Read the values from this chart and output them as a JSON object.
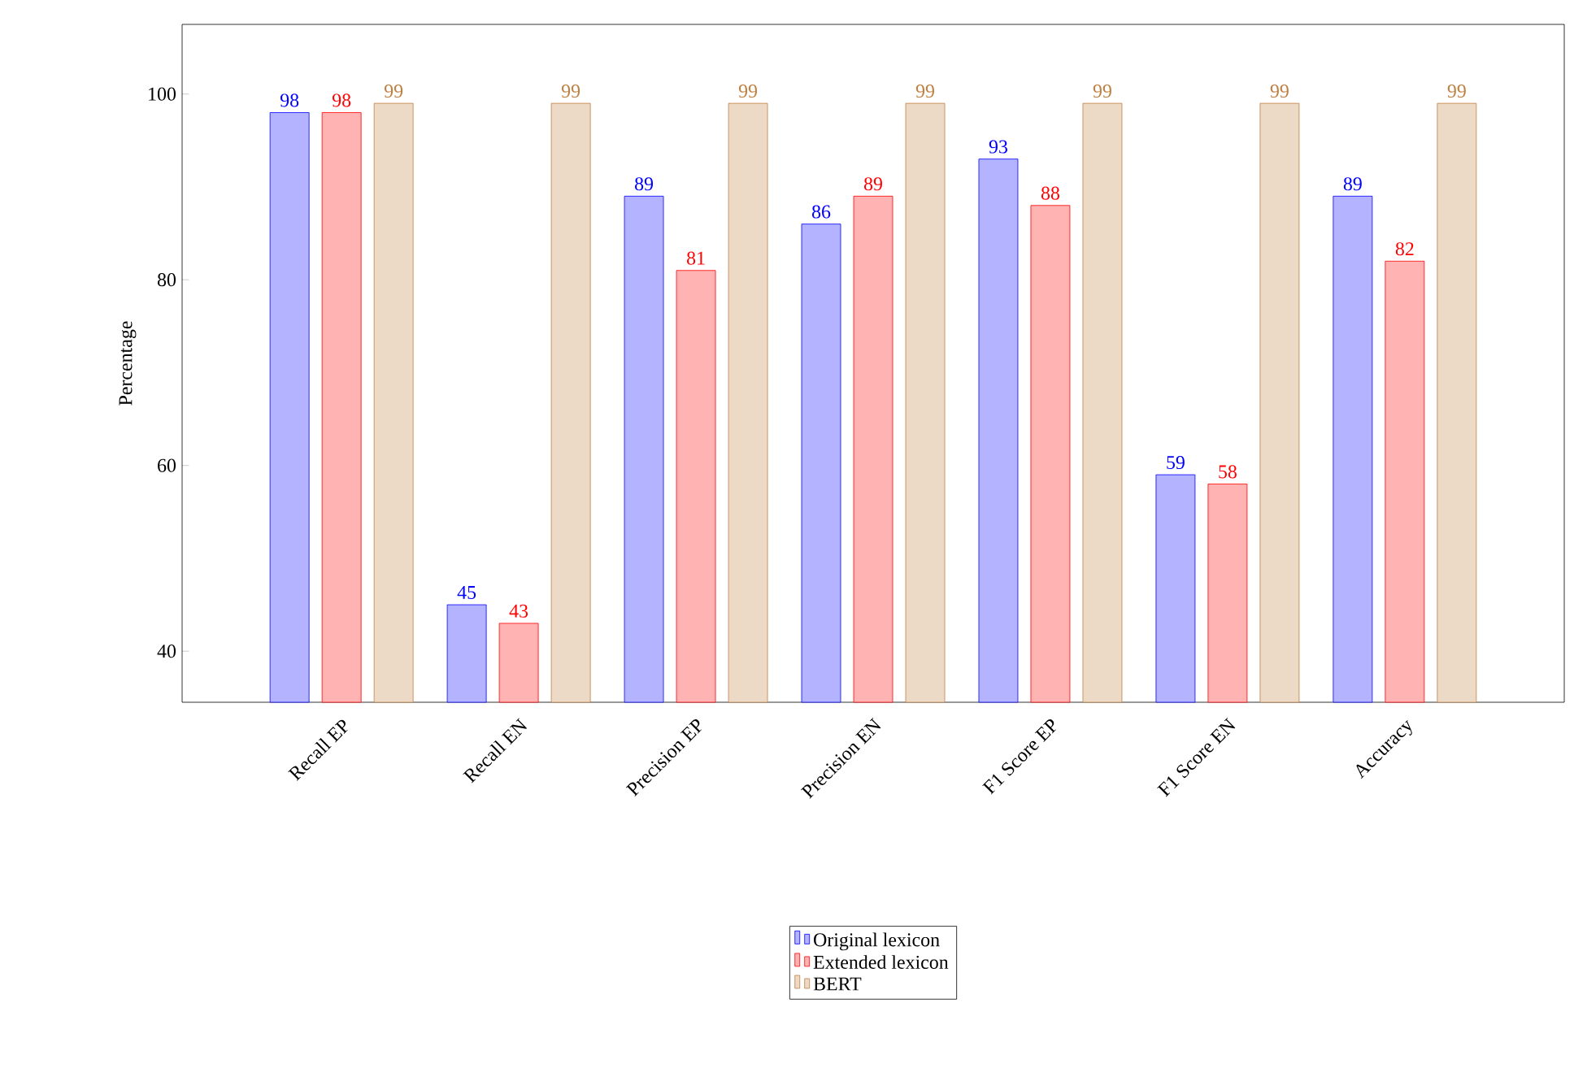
{
  "chart_data": {
    "type": "bar",
    "ylabel": "Percentage",
    "categories": [
      "Recall EP",
      "Recall EN",
      "Precision EP",
      "Precision EN",
      "F1 Score EP",
      "F1 Score EN",
      "Accuracy"
    ],
    "series": [
      {
        "name": "Original lexicon",
        "color": "#b3b3ff",
        "values": [
          98,
          45,
          89,
          86,
          93,
          59,
          89
        ]
      },
      {
        "name": "Extended lexicon",
        "color": "#ffb3b3",
        "values": [
          98,
          43,
          81,
          89,
          88,
          58,
          82
        ]
      },
      {
        "name": "BERT",
        "color": "#ecd9c6",
        "values": [
          99,
          99,
          99,
          99,
          99,
          99,
          99
        ]
      }
    ],
    "ylim": [
      34.5,
      107.5
    ],
    "yticks": [
      40,
      60,
      80,
      100
    ],
    "data_labels": true,
    "legend": "bottom",
    "grid": false
  }
}
